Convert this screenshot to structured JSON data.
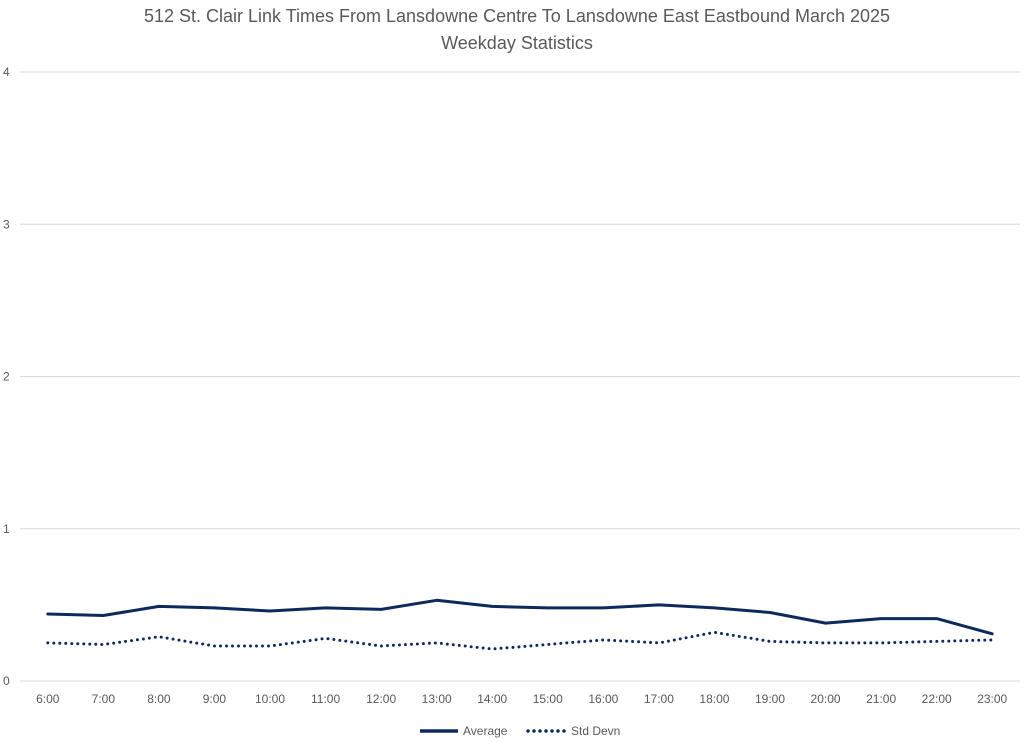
{
  "chart_data": {
    "type": "line",
    "title": "512 St. Clair Link Times From Lansdowne Centre To Lansdowne East Eastbound March 2025",
    "subtitle": "Weekday Statistics",
    "xlabel": "",
    "ylabel": "",
    "categories": [
      "6:00",
      "7:00",
      "8:00",
      "9:00",
      "10:00",
      "11:00",
      "12:00",
      "13:00",
      "14:00",
      "15:00",
      "16:00",
      "17:00",
      "18:00",
      "19:00",
      "20:00",
      "21:00",
      "22:00",
      "23:00"
    ],
    "ylim": [
      0,
      4
    ],
    "yticks": [
      "0",
      "1",
      "2",
      "3",
      "4"
    ],
    "grid": true,
    "legend_position": "bottom",
    "series": [
      {
        "name": "Average",
        "style": "solid",
        "color": "#0d2a5c",
        "values": [
          0.44,
          0.43,
          0.49,
          0.48,
          0.46,
          0.48,
          0.47,
          0.53,
          0.49,
          0.48,
          0.48,
          0.5,
          0.48,
          0.45,
          0.38,
          0.41,
          0.41,
          0.31
        ]
      },
      {
        "name": "Std Devn",
        "style": "dotted",
        "color": "#0d2a5c",
        "values": [
          0.25,
          0.24,
          0.29,
          0.23,
          0.23,
          0.28,
          0.23,
          0.25,
          0.21,
          0.24,
          0.27,
          0.25,
          0.32,
          0.26,
          0.25,
          0.25,
          0.26,
          0.27
        ]
      }
    ]
  }
}
